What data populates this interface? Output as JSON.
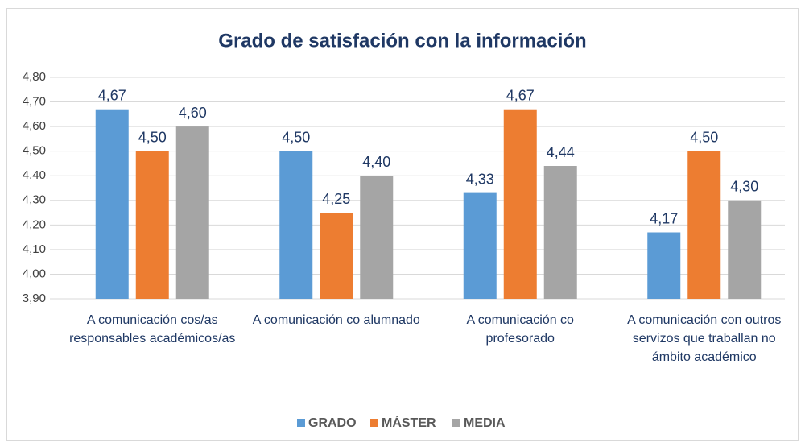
{
  "chart_data": {
    "type": "bar",
    "title": "Grado de satisfación con la información",
    "categories": [
      "A comunicación cos/as responsables académicos/as",
      "A comunicación co alumnado",
      "A comunicación co profesorado",
      "A comunicación con outros servizos que traballan no ámbito académico"
    ],
    "series": [
      {
        "name": "GRADO",
        "color": "#5b9bd5",
        "values": [
          4.67,
          4.5,
          4.33,
          4.17
        ],
        "value_labels": [
          "4,67",
          "4,50",
          "4,33",
          "4,17"
        ]
      },
      {
        "name": "MÁSTER",
        "color": "#ed7d31",
        "values": [
          4.5,
          4.25,
          4.67,
          4.5
        ],
        "value_labels": [
          "4,50",
          "4,25",
          "4,67",
          "4,50"
        ]
      },
      {
        "name": "MEDIA",
        "color": "#a5a5a5",
        "values": [
          4.6,
          4.4,
          4.44,
          4.3
        ],
        "value_labels": [
          "4,60",
          "4,40",
          "4,44",
          "4,30"
        ]
      }
    ],
    "ylim": [
      3.9,
      4.8
    ],
    "yticks": [
      {
        "value": 3.9,
        "label": "3,90"
      },
      {
        "value": 4.0,
        "label": "4,00"
      },
      {
        "value": 4.1,
        "label": "4,10"
      },
      {
        "value": 4.2,
        "label": "4,20"
      },
      {
        "value": 4.3,
        "label": "4,30"
      },
      {
        "value": 4.4,
        "label": "4,40"
      },
      {
        "value": 4.5,
        "label": "4,50"
      },
      {
        "value": 4.6,
        "label": "4,60"
      },
      {
        "value": 4.7,
        "label": "4,70"
      },
      {
        "value": 4.8,
        "label": "4,80"
      }
    ],
    "grid": true,
    "legend": "bottom"
  }
}
